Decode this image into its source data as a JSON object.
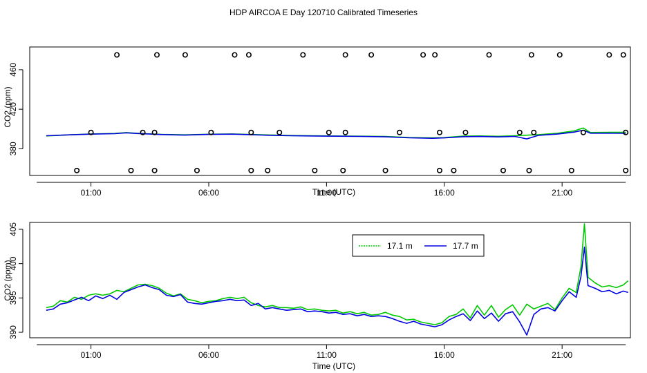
{
  "title": "HDP AIRCOA E  Day 120710  Calibrated Timeseries",
  "colors": {
    "green": "#00c800",
    "blue": "#0000e0",
    "axis": "#000000"
  },
  "chart_data": [
    {
      "type": "scatter",
      "xlabel": "Time (UTC)",
      "ylabel": "CO2 (ppm)",
      "xlim": [
        -1.6,
        23.9
      ],
      "ylim": [
        353,
        483
      ],
      "xticks": [
        {
          "v": 1,
          "label": "01:00"
        },
        {
          "v": 6,
          "label": "06:00"
        },
        {
          "v": 11,
          "label": "11:00"
        },
        {
          "v": 16,
          "label": "16:00"
        },
        {
          "v": 21,
          "label": "21:00"
        }
      ],
      "yticks": [
        {
          "v": 380,
          "label": "380"
        },
        {
          "v": 420,
          "label": "420"
        },
        {
          "v": 460,
          "label": "460"
        }
      ],
      "markers": {
        "high": {
          "y": 475,
          "x": [
            2.1,
            3.8,
            5.0,
            7.1,
            7.7,
            10.0,
            11.8,
            12.9,
            15.1,
            15.6,
            17.9,
            19.7,
            20.9,
            23.0,
            23.6
          ]
        },
        "mid": {
          "y": 396.5,
          "x": [
            1.0,
            3.2,
            3.7,
            6.1,
            7.8,
            9.0,
            11.1,
            11.8,
            14.1,
            15.8,
            16.9,
            19.2,
            19.8,
            21.9,
            23.7
          ]
        },
        "low": {
          "y": 358,
          "x": [
            0.4,
            2.7,
            3.7,
            5.5,
            7.8,
            8.5,
            10.5,
            11.7,
            13.5,
            15.8,
            16.4,
            18.5,
            19.6,
            21.4,
            23.7
          ]
        }
      },
      "series": [
        {
          "color": "green",
          "points": [
            [
              -0.9,
              393
            ],
            [
              0,
              394
            ],
            [
              1,
              395
            ],
            [
              2,
              395.5
            ],
            [
              2.5,
              396.4
            ],
            [
              3,
              395.6
            ],
            [
              4,
              394.6
            ],
            [
              5,
              394.1
            ],
            [
              6,
              394.7
            ],
            [
              7,
              395
            ],
            [
              7.7,
              394.6
            ],
            [
              8.5,
              394
            ],
            [
              9.5,
              393.4
            ],
            [
              10.5,
              393.2
            ],
            [
              11.5,
              392.9
            ],
            [
              12.5,
              392.7
            ],
            [
              13.5,
              392.4
            ],
            [
              14.5,
              391.4
            ],
            [
              15.5,
              391
            ],
            [
              16,
              391.3
            ],
            [
              16.8,
              392.8
            ],
            [
              17.5,
              393
            ],
            [
              18.3,
              392.6
            ],
            [
              19,
              393.2
            ],
            [
              20,
              394.3
            ],
            [
              20.8,
              395.7
            ],
            [
              21.5,
              398
            ],
            [
              21.9,
              401
            ],
            [
              22.2,
              396.5
            ],
            [
              23,
              396.6
            ],
            [
              23.7,
              396.6
            ]
          ]
        },
        {
          "color": "blue",
          "points": [
            [
              -0.9,
              393.2
            ],
            [
              0,
              394
            ],
            [
              1,
              394.8
            ],
            [
              2,
              395.3
            ],
            [
              2.5,
              396.1
            ],
            [
              3,
              395.4
            ],
            [
              4,
              394.4
            ],
            [
              5,
              393.8
            ],
            [
              6,
              394.5
            ],
            [
              7,
              394.8
            ],
            [
              7.7,
              394.3
            ],
            [
              8.5,
              393.7
            ],
            [
              9.5,
              393.2
            ],
            [
              10.5,
              392.9
            ],
            [
              11.5,
              392.7
            ],
            [
              12.5,
              392.5
            ],
            [
              13.5,
              392.1
            ],
            [
              14.5,
              391.1
            ],
            [
              15.5,
              390.6
            ],
            [
              16,
              391
            ],
            [
              16.8,
              392.2
            ],
            [
              17.5,
              392.4
            ],
            [
              18.3,
              392
            ],
            [
              19,
              392.5
            ],
            [
              19.5,
              390
            ],
            [
              20,
              393.6
            ],
            [
              20.8,
              394.9
            ],
            [
              21.5,
              396.8
            ],
            [
              21.9,
              398.8
            ],
            [
              22.2,
              395.8
            ],
            [
              23,
              395.8
            ],
            [
              23.7,
              395.6
            ]
          ]
        }
      ]
    },
    {
      "type": "line",
      "xlabel": "Time (UTC)",
      "ylabel": "CO2 (ppm)",
      "xlim": [
        -1.6,
        23.9
      ],
      "ylim": [
        389.2,
        406
      ],
      "xticks": [
        {
          "v": 1,
          "label": "01:00"
        },
        {
          "v": 6,
          "label": "06:00"
        },
        {
          "v": 11,
          "label": "11:00"
        },
        {
          "v": 16,
          "label": "16:00"
        },
        {
          "v": 21,
          "label": "21:00"
        }
      ],
      "yticks": [
        {
          "v": 390,
          "label": "390"
        },
        {
          "v": 395,
          "label": "395"
        },
        {
          "v": 400,
          "label": "400"
        },
        {
          "v": 405,
          "label": "405"
        }
      ],
      "legend": {
        "position": "top-center",
        "entries": [
          {
            "name": "17.1 m",
            "color": "green"
          },
          {
            "name": "17.7 m",
            "color": "blue"
          }
        ]
      },
      "series": [
        {
          "name": "17.1 m",
          "color": "green",
          "points": [
            [
              -0.9,
              393.6
            ],
            [
              -0.6,
              393.8
            ],
            [
              -0.3,
              394.6
            ],
            [
              0,
              394.4
            ],
            [
              0.3,
              395.1
            ],
            [
              0.6,
              394.8
            ],
            [
              0.9,
              395.4
            ],
            [
              1.2,
              395.6
            ],
            [
              1.5,
              395.4
            ],
            [
              1.8,
              395.6
            ],
            [
              2.1,
              396.1
            ],
            [
              2.4,
              395.9
            ],
            [
              2.7,
              396.4
            ],
            [
              3,
              396.9
            ],
            [
              3.3,
              397
            ],
            [
              3.6,
              396.8
            ],
            [
              3.9,
              396.4
            ],
            [
              4.2,
              395.7
            ],
            [
              4.5,
              395.3
            ],
            [
              4.8,
              395.6
            ],
            [
              5.1,
              394.8
            ],
            [
              5.4,
              394.6
            ],
            [
              5.7,
              394.3
            ],
            [
              6,
              394.5
            ],
            [
              6.3,
              394.6
            ],
            [
              6.6,
              394.9
            ],
            [
              6.9,
              395.1
            ],
            [
              7.2,
              394.9
            ],
            [
              7.5,
              395.1
            ],
            [
              7.8,
              394.3
            ],
            [
              8.1,
              393.9
            ],
            [
              8.4,
              393.7
            ],
            [
              8.7,
              393.9
            ],
            [
              9,
              393.6
            ],
            [
              9.3,
              393.6
            ],
            [
              9.6,
              393.5
            ],
            [
              9.9,
              393.7
            ],
            [
              10.2,
              393.3
            ],
            [
              10.5,
              393.4
            ],
            [
              10.8,
              393.2
            ],
            [
              11.1,
              393.1
            ],
            [
              11.4,
              393.2
            ],
            [
              11.7,
              392.8
            ],
            [
              12,
              393
            ],
            [
              12.3,
              392.7
            ],
            [
              12.6,
              392.9
            ],
            [
              12.9,
              392.5
            ],
            [
              13.2,
              392.6
            ],
            [
              13.5,
              392.9
            ],
            [
              13.8,
              392.5
            ],
            [
              14.1,
              392.3
            ],
            [
              14.4,
              391.8
            ],
            [
              14.7,
              391.9
            ],
            [
              15,
              391.5
            ],
            [
              15.3,
              391.3
            ],
            [
              15.6,
              391.1
            ],
            [
              15.9,
              391.4
            ],
            [
              16.2,
              392.3
            ],
            [
              16.5,
              392.6
            ],
            [
              16.8,
              393.4
            ],
            [
              17.1,
              392.1
            ],
            [
              17.4,
              393.9
            ],
            [
              17.7,
              392.5
            ],
            [
              18,
              393.9
            ],
            [
              18.3,
              392.2
            ],
            [
              18.6,
              393.3
            ],
            [
              18.9,
              394
            ],
            [
              19.2,
              392.5
            ],
            [
              19.5,
              394.1
            ],
            [
              19.8,
              393.4
            ],
            [
              20.1,
              393.8
            ],
            [
              20.4,
              394.2
            ],
            [
              20.7,
              393.3
            ],
            [
              21,
              395
            ],
            [
              21.3,
              396.4
            ],
            [
              21.6,
              395.8
            ],
            [
              21.8,
              399.5
            ],
            [
              21.95,
              405.8
            ],
            [
              22.1,
              398
            ],
            [
              22.4,
              397.2
            ],
            [
              22.7,
              396.6
            ],
            [
              23,
              396.8
            ],
            [
              23.3,
              396.5
            ],
            [
              23.6,
              396.9
            ],
            [
              23.8,
              397.5
            ]
          ]
        },
        {
          "name": "17.7 m",
          "color": "blue",
          "points": [
            [
              -0.9,
              393.2
            ],
            [
              -0.6,
              393.4
            ],
            [
              -0.3,
              394.1
            ],
            [
              0,
              394.3
            ],
            [
              0.3,
              394.7
            ],
            [
              0.6,
              395.1
            ],
            [
              0.9,
              394.6
            ],
            [
              1.2,
              395.3
            ],
            [
              1.5,
              394.9
            ],
            [
              1.8,
              395.4
            ],
            [
              2.1,
              394.8
            ],
            [
              2.4,
              395.8
            ],
            [
              2.7,
              396.2
            ],
            [
              3,
              396.6
            ],
            [
              3.3,
              396.9
            ],
            [
              3.6,
              396.5
            ],
            [
              3.9,
              396.2
            ],
            [
              4.2,
              395.4
            ],
            [
              4.5,
              395.2
            ],
            [
              4.8,
              395.5
            ],
            [
              5.1,
              394.4
            ],
            [
              5.4,
              394.2
            ],
            [
              5.7,
              394.1
            ],
            [
              6,
              394.3
            ],
            [
              6.3,
              394.5
            ],
            [
              6.6,
              394.6
            ],
            [
              6.9,
              394.8
            ],
            [
              7.2,
              394.6
            ],
            [
              7.5,
              394.7
            ],
            [
              7.8,
              393.9
            ],
            [
              8.1,
              394.2
            ],
            [
              8.4,
              393.4
            ],
            [
              8.7,
              393.6
            ],
            [
              9,
              393.4
            ],
            [
              9.3,
              393.2
            ],
            [
              9.6,
              393.3
            ],
            [
              9.9,
              393.4
            ],
            [
              10.2,
              393
            ],
            [
              10.5,
              393.1
            ],
            [
              10.8,
              393
            ],
            [
              11.1,
              392.8
            ],
            [
              11.4,
              392.9
            ],
            [
              11.7,
              392.6
            ],
            [
              12,
              392.7
            ],
            [
              12.3,
              392.4
            ],
            [
              12.6,
              392.6
            ],
            [
              12.9,
              392.3
            ],
            [
              13.2,
              392.4
            ],
            [
              13.5,
              392.3
            ],
            [
              13.8,
              392
            ],
            [
              14.1,
              391.6
            ],
            [
              14.4,
              391.3
            ],
            [
              14.7,
              391.6
            ],
            [
              15,
              391.2
            ],
            [
              15.3,
              391
            ],
            [
              15.6,
              390.8
            ],
            [
              15.9,
              391.1
            ],
            [
              16.2,
              391.8
            ],
            [
              16.5,
              392.3
            ],
            [
              16.8,
              392.7
            ],
            [
              17.1,
              391.7
            ],
            [
              17.4,
              393.1
            ],
            [
              17.7,
              392
            ],
            [
              18,
              392.8
            ],
            [
              18.3,
              391.6
            ],
            [
              18.6,
              392.7
            ],
            [
              18.9,
              393
            ],
            [
              19.2,
              391.5
            ],
            [
              19.5,
              389.6
            ],
            [
              19.8,
              392.6
            ],
            [
              20.1,
              393.4
            ],
            [
              20.4,
              393.6
            ],
            [
              20.7,
              393.1
            ],
            [
              21,
              394.6
            ],
            [
              21.3,
              395.9
            ],
            [
              21.6,
              395.1
            ],
            [
              21.8,
              398.1
            ],
            [
              21.95,
              402.4
            ],
            [
              22.1,
              396.8
            ],
            [
              22.4,
              396.4
            ],
            [
              22.7,
              395.9
            ],
            [
              23,
              396.1
            ],
            [
              23.3,
              395.6
            ],
            [
              23.6,
              396
            ],
            [
              23.8,
              395.8
            ]
          ]
        }
      ]
    }
  ]
}
